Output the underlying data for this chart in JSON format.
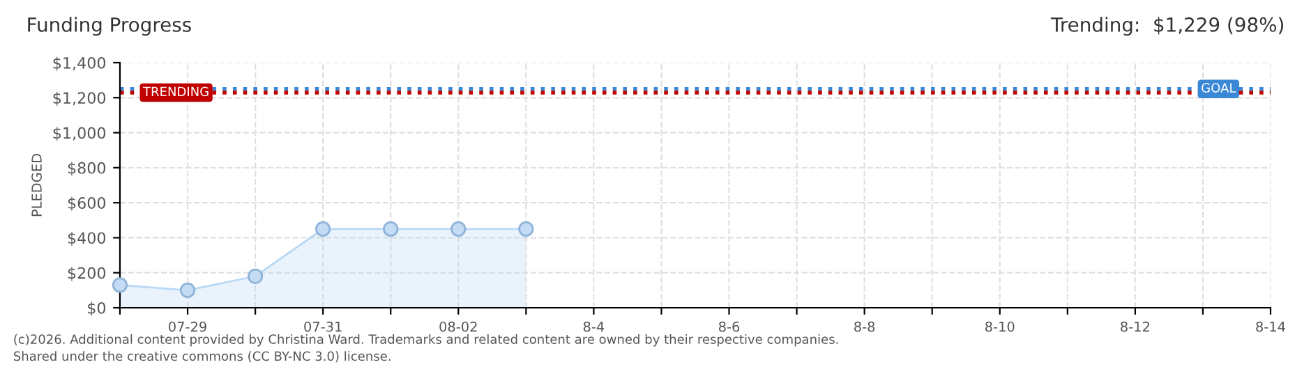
{
  "chart_data": {
    "type": "area",
    "title": "Funding Progress",
    "ylabel": "PLEDGED",
    "categories": [
      null,
      "07-29",
      null,
      "07-31",
      null,
      "08-02",
      null,
      "8-4",
      null,
      "8-6",
      null,
      "8-8",
      null,
      "8-10",
      null,
      "8-12",
      null,
      "8-14"
    ],
    "series": [
      {
        "color": "#b8d8f5",
        "values": [
          130,
          100,
          180,
          450,
          450,
          450,
          450,
          null,
          null,
          null,
          null,
          null,
          null,
          null,
          null,
          null,
          null,
          null
        ]
      }
    ],
    "marker": "circle",
    "ylim": [
      0,
      1400
    ],
    "yticks": [
      {
        "value": 0,
        "label": "$0"
      },
      {
        "value": 200,
        "label": "$200"
      },
      {
        "value": 400,
        "label": "$400"
      },
      {
        "value": 600,
        "label": "$600"
      },
      {
        "value": 800,
        "label": "$800"
      },
      {
        "value": 1000,
        "label": "$1,000"
      },
      {
        "value": 1200,
        "label": "$1,200"
      },
      {
        "value": 1400,
        "label": "$1,400"
      }
    ],
    "grid": true,
    "ref_lines": [
      {
        "axis": "y",
        "value": 1250,
        "label": "GOAL",
        "color": "#3a87d6",
        "line_style": "dotted"
      },
      {
        "axis": "y",
        "value": 1229,
        "label": "TRENDING",
        "color": "#c00000",
        "line_style": "dotted"
      }
    ],
    "annotations": [
      "Trending:  $1,229 (98%)",
      "(c)2026. Additional content provided by Christina Ward. Trademarks and related content are owned by their respective companies.",
      "Shared under the creative commons (CC BY-NC 3.0) license."
    ]
  }
}
